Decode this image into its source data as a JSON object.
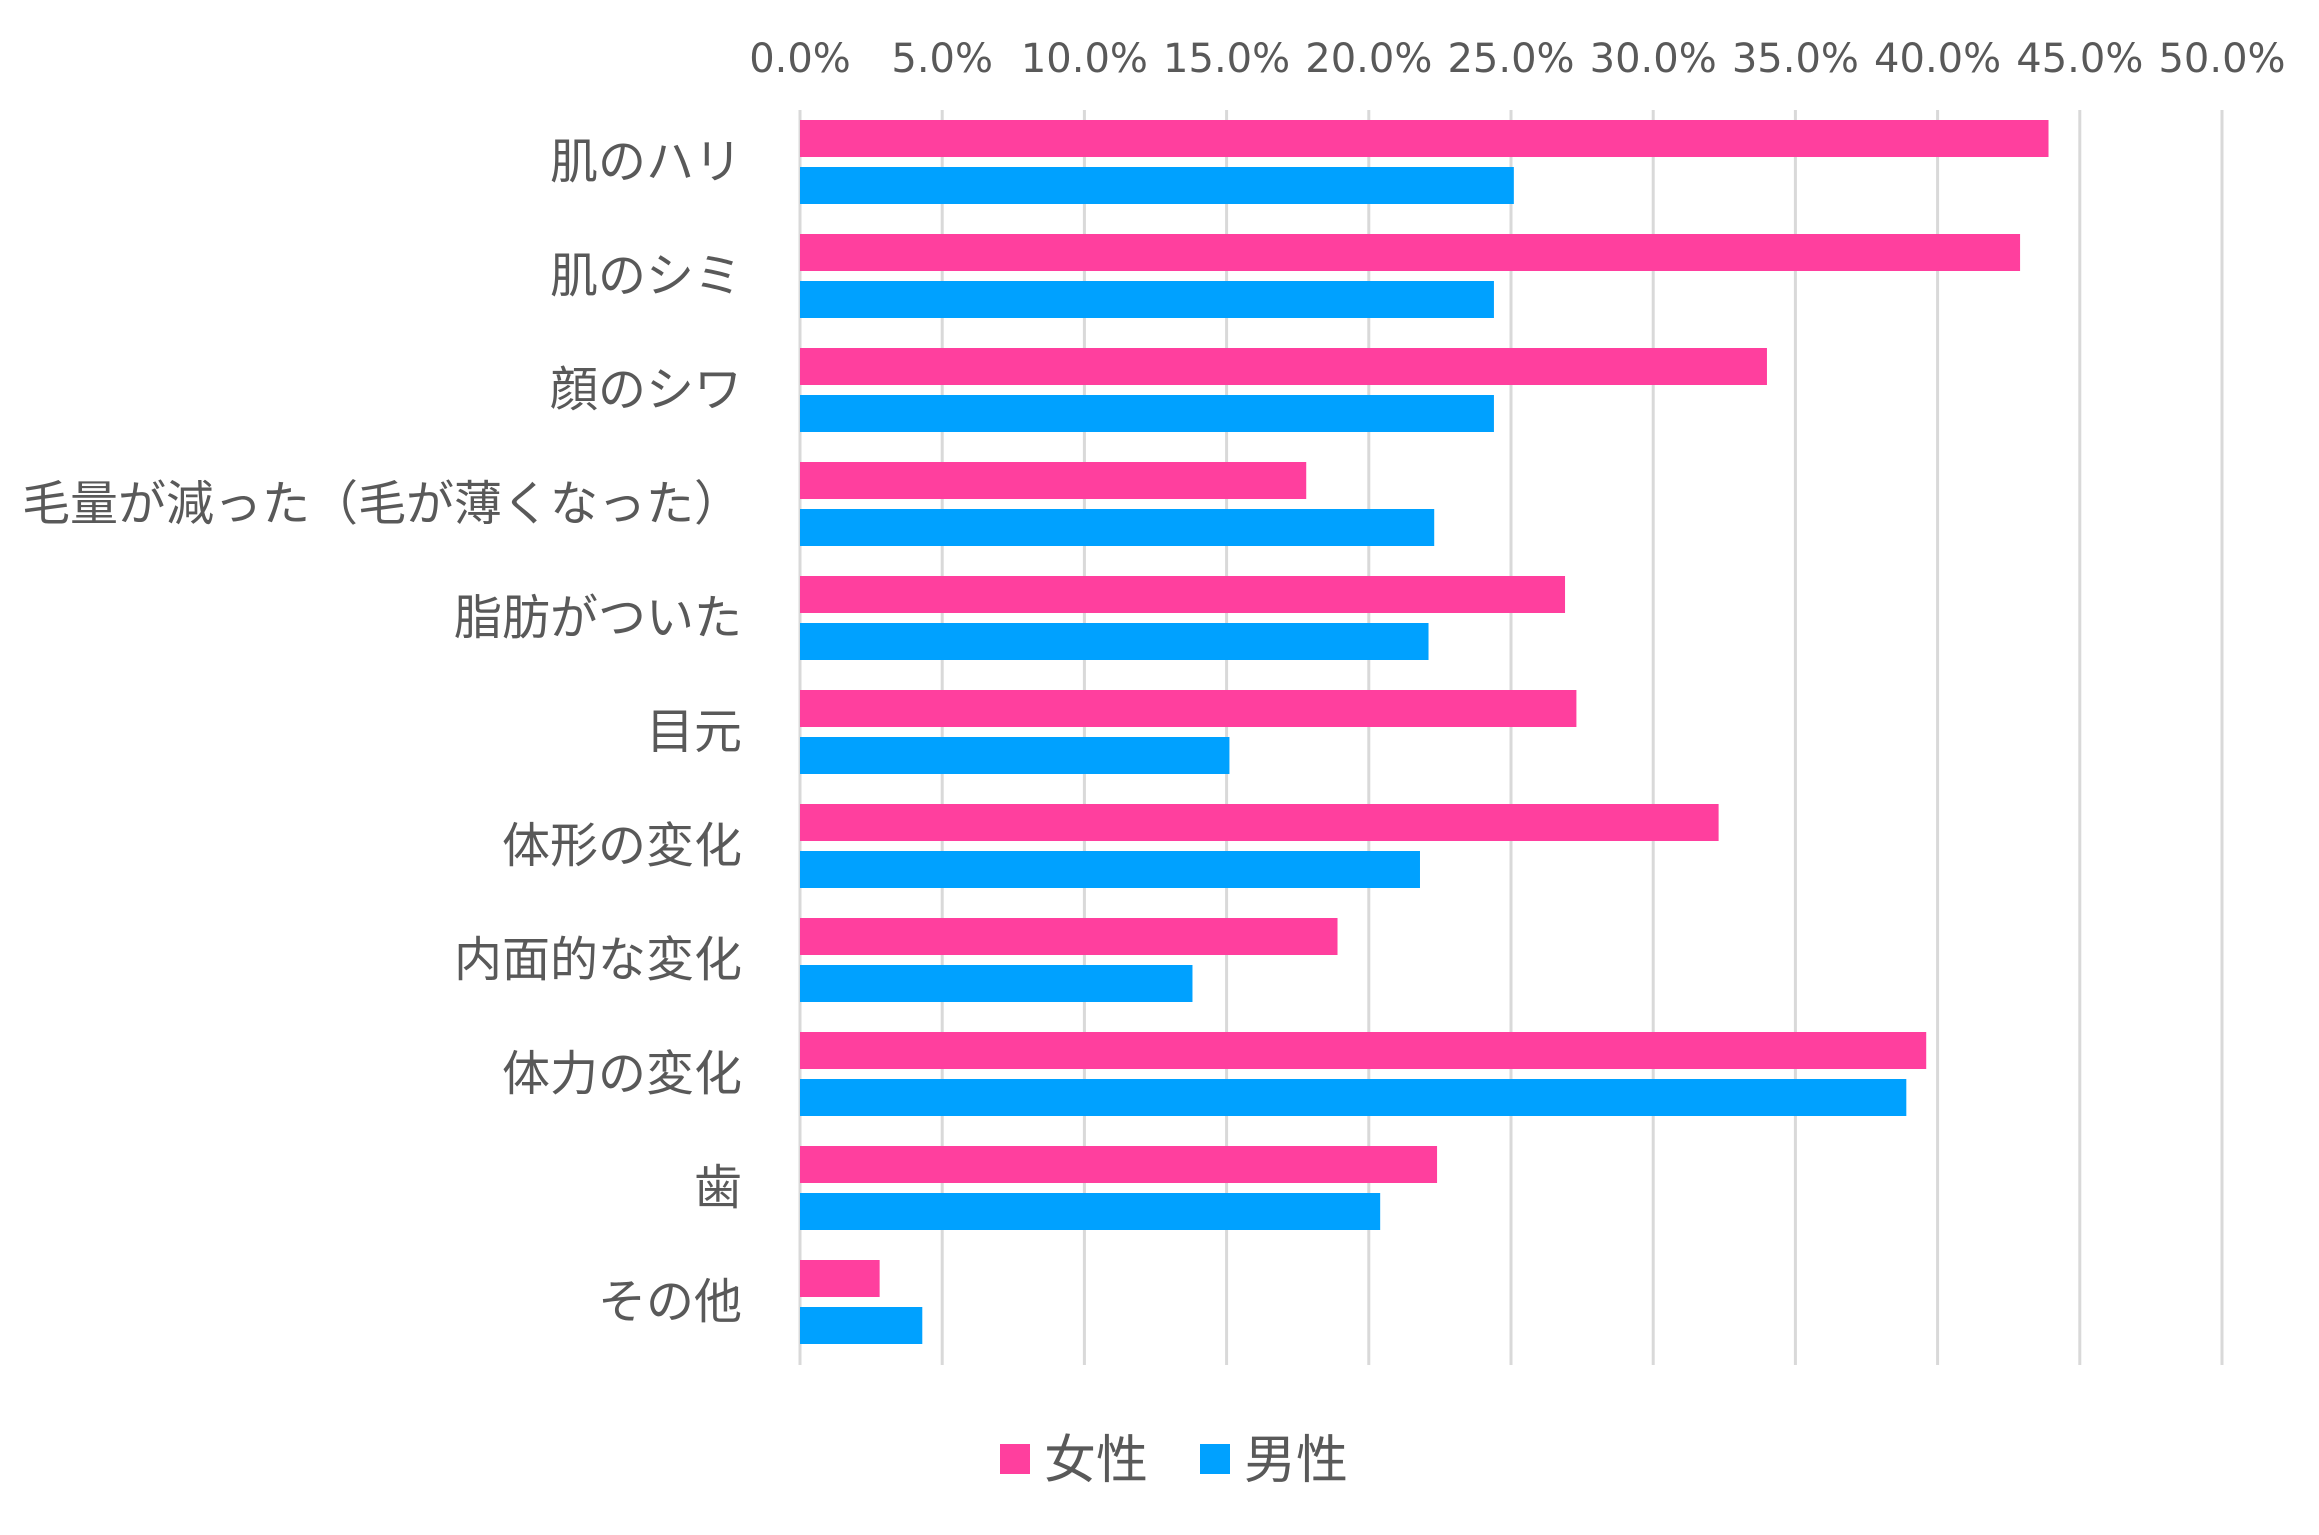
{
  "chart_data": {
    "type": "bar",
    "orientation": "horizontal",
    "title": "",
    "xlabel": "",
    "ylabel": "",
    "xlim": [
      0,
      50
    ],
    "x_ticks": [
      "0.0%",
      "5.0%",
      "10.0%",
      "15.0%",
      "20.0%",
      "25.0%",
      "30.0%",
      "35.0%",
      "40.0%",
      "45.0%",
      "50.0%"
    ],
    "x_axis_position": "top",
    "grid": true,
    "legend_position": "bottom",
    "categories": [
      "肌のハリ",
      "肌のシミ",
      "顔のシワ",
      "毛量が減った（毛が薄くなった）",
      "脂肪がついた",
      "目元",
      "体形の変化",
      "内面的な変化",
      "体力の変化",
      "歯",
      "その他"
    ],
    "series": [
      {
        "name": "女性",
        "color": "#ff3f9e",
        "values": [
          43.9,
          42.9,
          34.0,
          17.8,
          26.9,
          27.3,
          32.3,
          18.9,
          39.6,
          22.4,
          2.8
        ]
      },
      {
        "name": "男性",
        "color": "#00a1ff",
        "values": [
          25.1,
          24.4,
          24.4,
          22.3,
          22.1,
          15.1,
          21.8,
          13.8,
          38.9,
          20.4,
          4.3
        ]
      }
    ]
  }
}
